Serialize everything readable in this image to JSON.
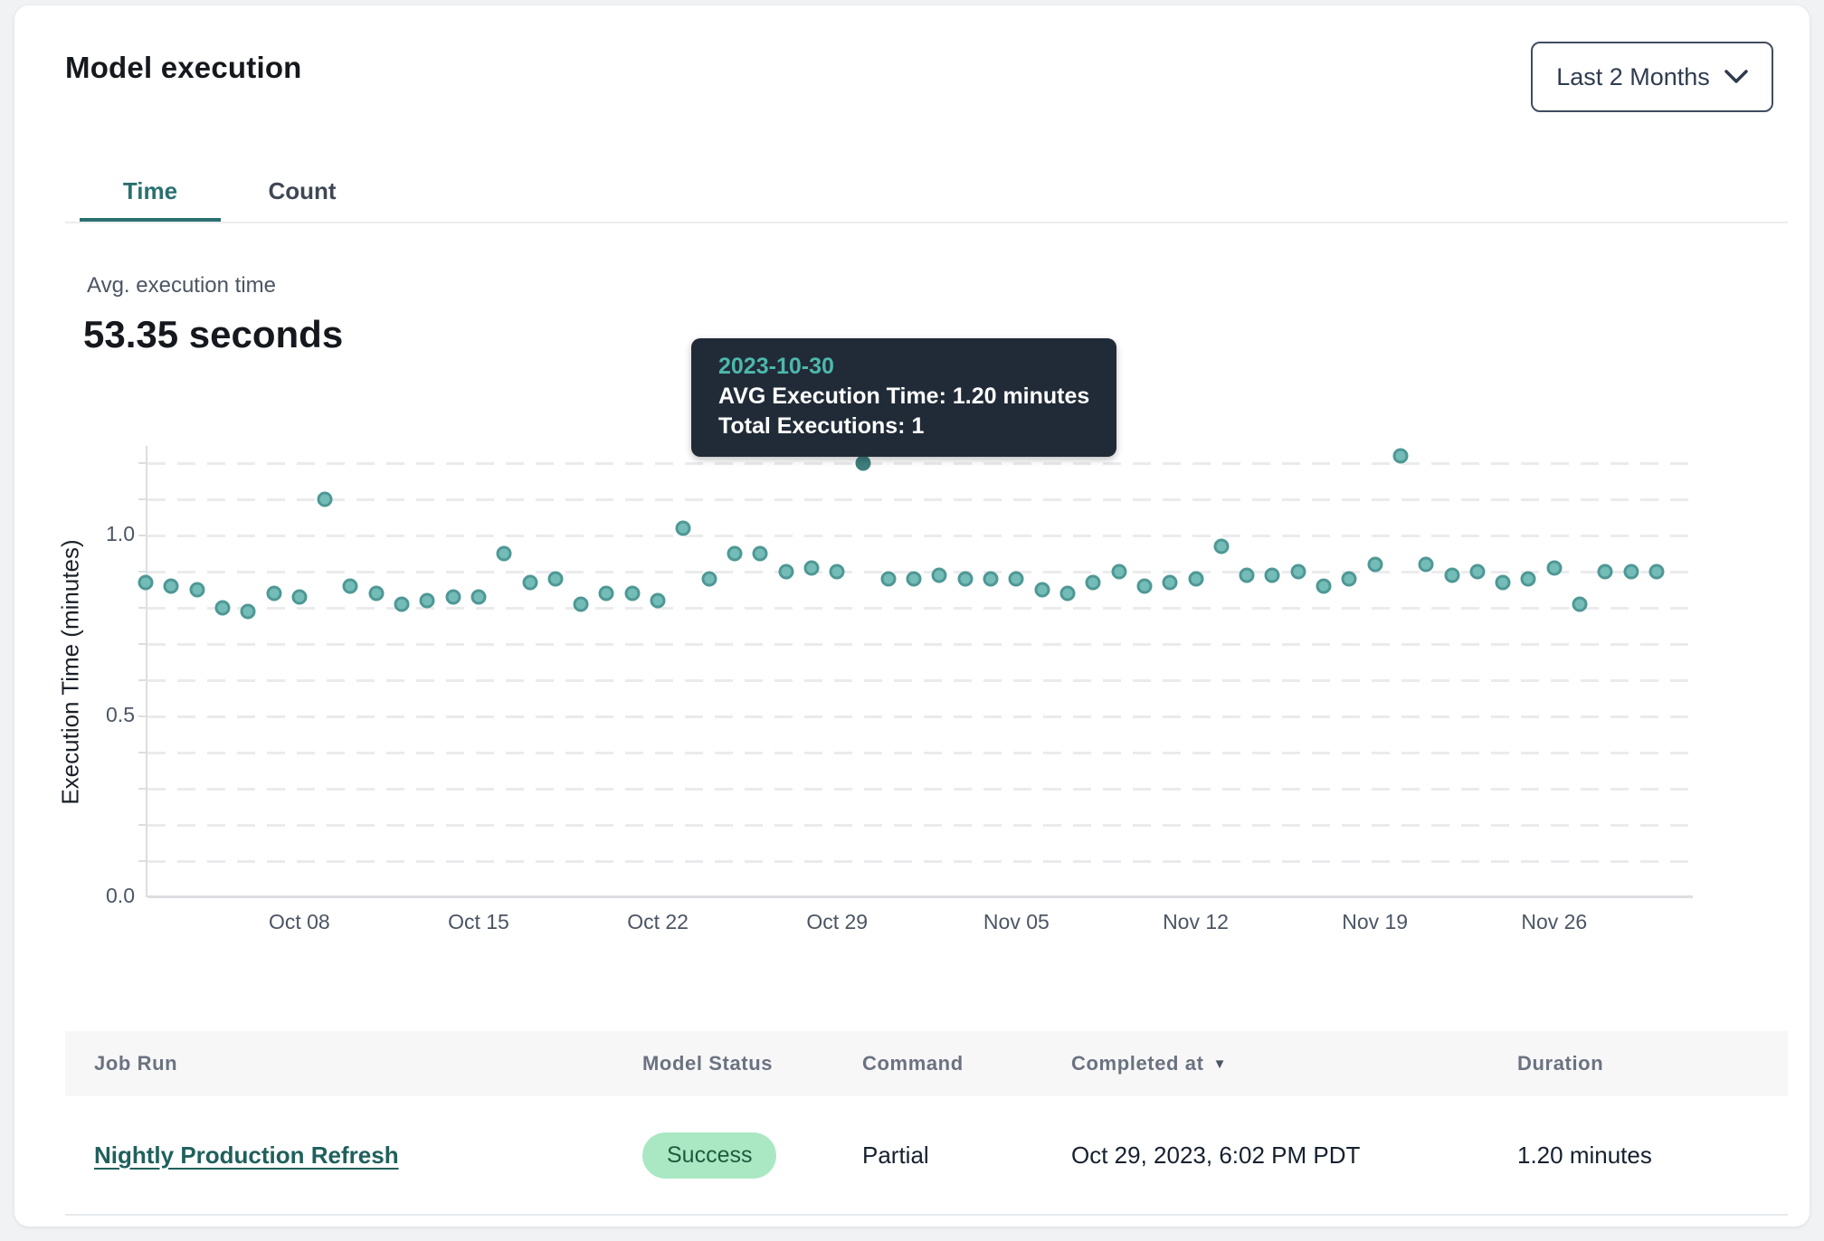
{
  "header": {
    "title": "Model execution",
    "range_selector": {
      "label": "Last 2 Months"
    }
  },
  "tabs": [
    {
      "label": "Time",
      "active": true
    },
    {
      "label": "Count",
      "active": false
    }
  ],
  "summary": {
    "label": "Avg. execution time",
    "value": "53.35 seconds"
  },
  "tooltip": {
    "date": "2023-10-30",
    "line1": "AVG Execution Time: 1.20 minutes",
    "line2": "Total Executions: 1"
  },
  "chart_data": {
    "type": "scatter",
    "title": "",
    "xlabel": "",
    "ylabel": "Execution Time (minutes)",
    "ylim": [
      0,
      1.25
    ],
    "y_ticks": [
      0.0,
      0.5,
      1.0
    ],
    "grid": "horizontal dashed every 0.1",
    "legend": "none",
    "dates": [
      "2023-10-02",
      "2023-10-03",
      "2023-10-04",
      "2023-10-05",
      "2023-10-06",
      "2023-10-07",
      "2023-10-08",
      "2023-10-09",
      "2023-10-10",
      "2023-10-11",
      "2023-10-12",
      "2023-10-13",
      "2023-10-14",
      "2023-10-15",
      "2023-10-16",
      "2023-10-17",
      "2023-10-18",
      "2023-10-19",
      "2023-10-20",
      "2023-10-21",
      "2023-10-22",
      "2023-10-23",
      "2023-10-24",
      "2023-10-25",
      "2023-10-26",
      "2023-10-27",
      "2023-10-28",
      "2023-10-29",
      "2023-10-30",
      "2023-10-31",
      "2023-11-01",
      "2023-11-02",
      "2023-11-03",
      "2023-11-04",
      "2023-11-05",
      "2023-11-06",
      "2023-11-07",
      "2023-11-08",
      "2023-11-09",
      "2023-11-10",
      "2023-11-11",
      "2023-11-12",
      "2023-11-13",
      "2023-11-14",
      "2023-11-15",
      "2023-11-16",
      "2023-11-17",
      "2023-11-18",
      "2023-11-19",
      "2023-11-20",
      "2023-11-21",
      "2023-11-22",
      "2023-11-23",
      "2023-11-24",
      "2023-11-25",
      "2023-11-26",
      "2023-11-27",
      "2023-11-28",
      "2023-11-29",
      "2023-11-30"
    ],
    "values": [
      0.87,
      0.86,
      0.85,
      0.8,
      0.79,
      0.84,
      0.83,
      1.1,
      0.86,
      0.84,
      0.81,
      0.82,
      0.83,
      0.83,
      0.95,
      0.87,
      0.88,
      0.81,
      0.84,
      0.84,
      0.82,
      1.02,
      0.88,
      0.95,
      0.95,
      0.9,
      0.91,
      0.9,
      1.2,
      0.88,
      0.88,
      0.89,
      0.88,
      0.88,
      0.88,
      0.85,
      0.84,
      0.87,
      0.9,
      0.86,
      0.87,
      0.88,
      0.97,
      0.89,
      0.89,
      0.9,
      0.86,
      0.88,
      0.92,
      1.22,
      0.92,
      0.89,
      0.9,
      0.87,
      0.88,
      0.91,
      0.81,
      0.9,
      0.9,
      0.9
    ],
    "highlight": {
      "index": 28,
      "date": "2023-10-30",
      "avg_execution_time_minutes": 1.2,
      "total_executions": 1
    },
    "x_tick_labels": [
      "Oct 08",
      "Oct 15",
      "Oct 22",
      "Oct 29",
      "Nov 05",
      "Nov 12",
      "Nov 19",
      "Nov 26"
    ],
    "x_tick_indices": [
      6,
      13,
      20,
      27,
      34,
      41,
      48,
      55
    ],
    "point_color": "#74bcb8",
    "point_border_color": "#4e9895",
    "highlight_color": "#3e7e7c"
  },
  "table": {
    "columns": [
      {
        "label": "Job Run"
      },
      {
        "label": "Model Status"
      },
      {
        "label": "Command"
      },
      {
        "label": "Completed at",
        "sorted": "desc"
      },
      {
        "label": "Duration"
      }
    ],
    "rows": [
      {
        "job_run": "Nightly Production Refresh",
        "model_status": "Success",
        "command": "Partial",
        "completed_at": "Oct 29, 2023, 6:02 PM PDT",
        "duration": "1.20 minutes"
      }
    ]
  },
  "colors": {
    "accent_teal": "#2a7071",
    "tooltip_bg": "#212b38",
    "tooltip_date": "#4cb8ab",
    "badge_bg": "#a9e8c2",
    "badge_text": "#1d5b3d",
    "link": "#1f605c"
  }
}
